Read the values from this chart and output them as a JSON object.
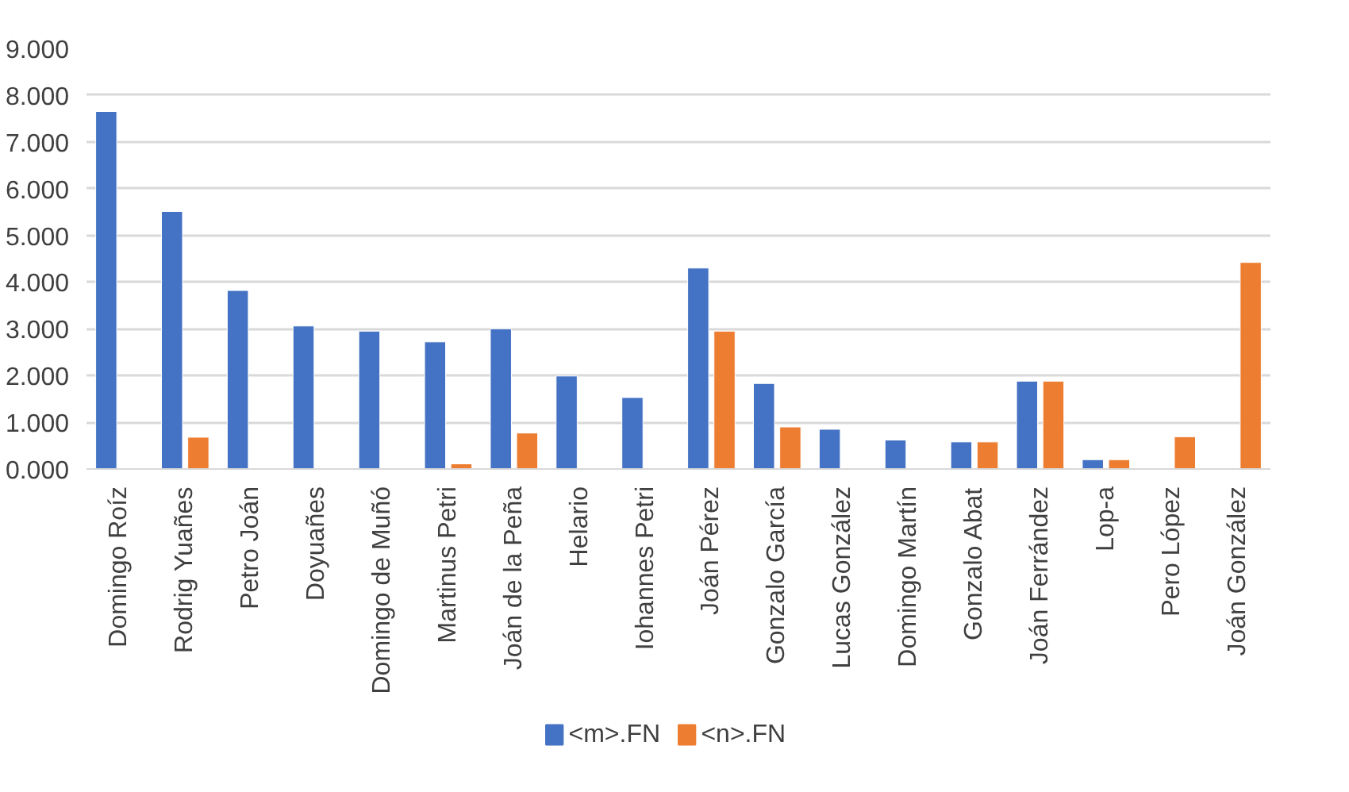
{
  "chart_data": {
    "type": "bar",
    "categories": [
      "Domingo Roíz",
      "Rodrig Yuañes",
      "Petro Joán",
      "Doyuañes",
      "Domingo de Muñó",
      "Martinus Petri",
      "Joán de la Peña",
      "Helario",
      "Iohannes Petri",
      "Joán Pérez",
      "Gonzalo García",
      "Lucas González",
      "Domingo Martín",
      "Gonzalo Abat",
      "Joán Ferrández",
      "Lop-a",
      "Pero López",
      "Joán González"
    ],
    "series": [
      {
        "name": "<m>.FN",
        "color": "#4472c4",
        "values": [
          7.65,
          5.51,
          3.82,
          3.06,
          2.95,
          2.72,
          3.0,
          1.99,
          1.53,
          4.3,
          1.83,
          0.85,
          0.62,
          0.58,
          1.88,
          0.2,
          null,
          null
        ]
      },
      {
        "name": "<n>.FN",
        "color": "#ed7d31",
        "values": [
          null,
          0.68,
          null,
          null,
          null,
          0.11,
          0.77,
          null,
          null,
          2.95,
          0.9,
          null,
          null,
          0.58,
          1.88,
          0.2,
          0.69,
          4.42
        ]
      }
    ],
    "ylim": [
      0,
      9
    ],
    "yticks": [
      {
        "value": 0,
        "label": "0.000"
      },
      {
        "value": 1,
        "label": "1.000"
      },
      {
        "value": 2,
        "label": "2.000"
      },
      {
        "value": 3,
        "label": "3.000"
      },
      {
        "value": 4,
        "label": "4.000"
      },
      {
        "value": 5,
        "label": "5.000"
      },
      {
        "value": 6,
        "label": "6.000"
      },
      {
        "value": 7,
        "label": "7.000"
      },
      {
        "value": 8,
        "label": "8.000"
      },
      {
        "value": 9,
        "label": "9.000"
      }
    ],
    "grid": "y",
    "legend": "bottom"
  }
}
